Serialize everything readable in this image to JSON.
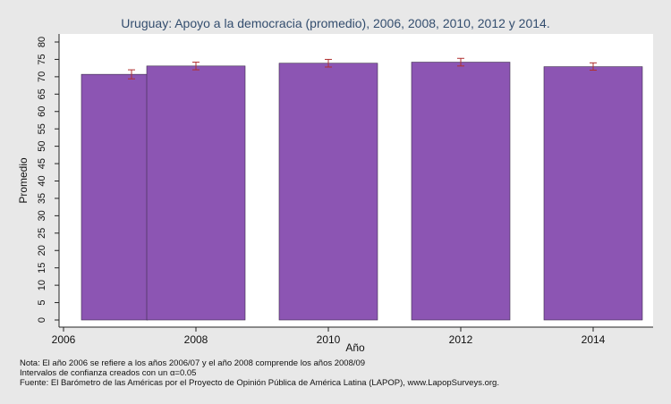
{
  "chart_data": {
    "type": "bar",
    "title": "Uruguay: Apoyo a la democracia (promedio), 2006, 2008, 2010, 2012 y 2014.",
    "xlabel": "Año",
    "ylabel": "Promedio",
    "x_ticks": [
      "2006",
      "2008",
      "2010",
      "2012",
      "2014"
    ],
    "xlim": [
      2006,
      2014.9
    ],
    "ylim": [
      0,
      80
    ],
    "y_ticks": [
      "0",
      "5",
      "10",
      "15",
      "20",
      "25",
      "30",
      "35",
      "40",
      "45",
      "50",
      "55",
      "60",
      "65",
      "70",
      "75",
      "80"
    ],
    "grid": false,
    "bar_color": "#8c55b3",
    "error_bar_color": "#b03030",
    "bars": [
      {
        "year": 2006,
        "value": 70.7,
        "ci_low": 69.4,
        "ci_high": 72.0
      },
      {
        "year": 2008,
        "value": 73.1,
        "ci_low": 72.0,
        "ci_high": 74.2
      },
      {
        "year": 2010,
        "value": 73.9,
        "ci_low": 72.8,
        "ci_high": 75.0
      },
      {
        "year": 2012,
        "value": 74.2,
        "ci_low": 73.1,
        "ci_high": 75.3
      },
      {
        "year": 2014,
        "value": 72.9,
        "ci_low": 71.9,
        "ci_high": 74.0
      }
    ]
  },
  "notes": {
    "line1": "Nota: El año 2006 se refiere a los años 2006/07 y el año 2008 comprende los años 2008/09",
    "line2": "Intervalos de confianza creados con un α=0.05",
    "line3": "Fuente: El Barómetro de las Américas por el Proyecto de Opinión Pública de América Latina (LAPOP), www.LapopSurveys.org."
  }
}
